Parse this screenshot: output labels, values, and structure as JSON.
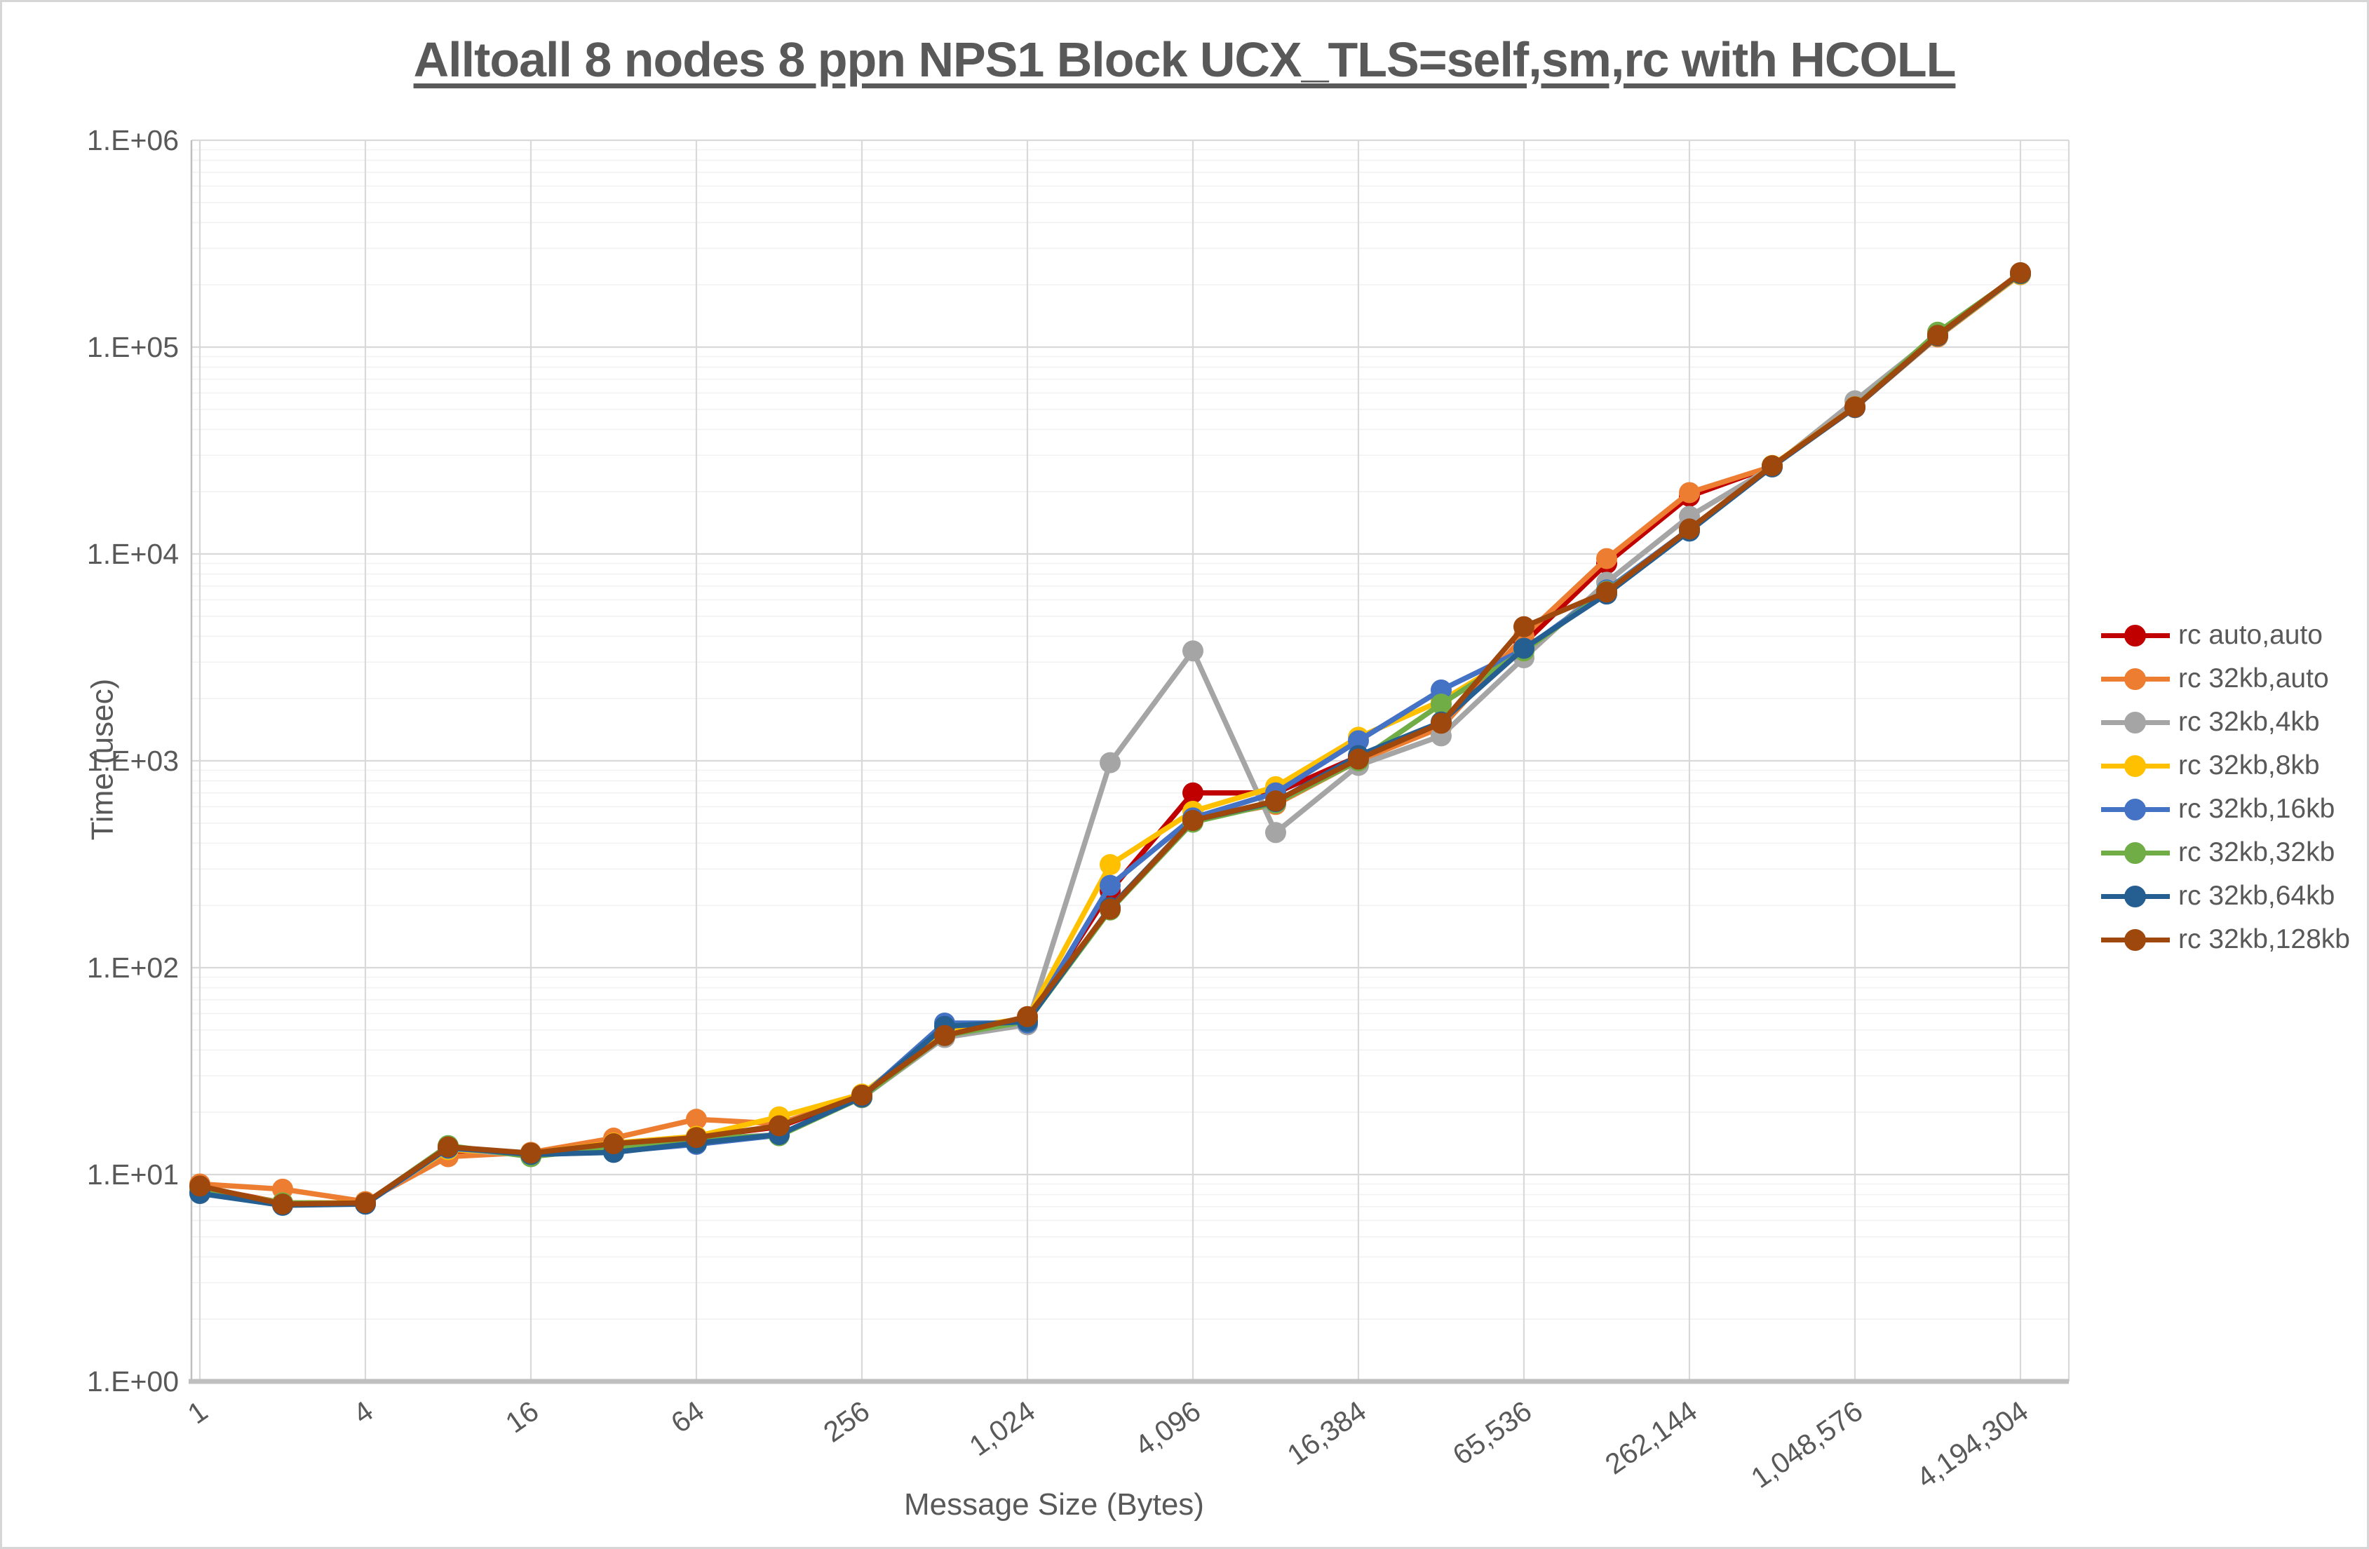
{
  "chart_data": {
    "type": "line",
    "title": "Alltoall 8 nodes 8 ppn NPS1 Block UCX_TLS=self,sm,rc with HCOLL",
    "xlabel": "Message Size (Bytes)",
    "ylabel": "Time (usec)",
    "x_scale": "categorical powers of 2 (1 .. 4194304)",
    "y_scale": "log10",
    "ylim": [
      1,
      1000000
    ],
    "grid": "horizontal major+minor log gridlines, vertical gridlines at labeled categories",
    "legend_position": "right",
    "y_tick_labels": [
      "1.E+00",
      "1.E+01",
      "1.E+02",
      "1.E+03",
      "1.E+04",
      "1.E+05",
      "1.E+06"
    ],
    "x_categories": [
      1,
      2,
      4,
      8,
      16,
      32,
      64,
      128,
      256,
      512,
      1024,
      2048,
      4096,
      8192,
      16384,
      32768,
      65536,
      131072,
      262144,
      524288,
      1048576,
      2097152,
      4194304
    ],
    "x_tick_labels": [
      "1",
      "4",
      "16",
      "64",
      "256",
      "1,024",
      "4,096",
      "16,384",
      "65,536",
      "262,144",
      "1,048,576",
      "4,194,304"
    ],
    "series": [
      {
        "name": "rc auto,auto",
        "color": "#C00000",
        "values": [
          8.7,
          7.3,
          7.3,
          13.0,
          12.6,
          14.0,
          15.2,
          17.0,
          24.0,
          47,
          56,
          235,
          700,
          700,
          1050,
          1500,
          3700,
          9000,
          19000,
          26500,
          51000,
          113000,
          225000
        ]
      },
      {
        "name": "rc 32kb,auto",
        "color": "#ED7D31",
        "values": [
          9.0,
          8.5,
          7.4,
          12.2,
          12.8,
          15.0,
          18.5,
          17.6,
          24.0,
          46,
          56,
          195,
          520,
          615,
          1000,
          1450,
          4000,
          9500,
          19800,
          26500,
          51000,
          112000,
          224000
        ]
      },
      {
        "name": "rc 32kb,4kb",
        "color": "#A5A5A5",
        "values": [
          8.3,
          7.2,
          7.2,
          13.3,
          12.4,
          13.0,
          14.8,
          15.6,
          23.5,
          46,
          53,
          980,
          3400,
          450,
          950,
          1320,
          3150,
          7300,
          15200,
          26300,
          55000,
          115000,
          226000
        ]
      },
      {
        "name": "rc 32kb,8kb",
        "color": "#FFC000",
        "values": [
          8.6,
          7.3,
          7.3,
          13.2,
          12.7,
          14.2,
          15.3,
          19.0,
          24.5,
          50,
          57,
          315,
          570,
          750,
          1300,
          1950,
          3400,
          6600,
          13000,
          26800,
          51500,
          113000,
          225000
        ]
      },
      {
        "name": "rc 32kb,16kb",
        "color": "#4472C4",
        "values": [
          8.2,
          7.2,
          7.2,
          13.4,
          12.6,
          12.9,
          14.0,
          15.5,
          23.8,
          54,
          54,
          250,
          530,
          700,
          1250,
          2200,
          3450,
          6700,
          13200,
          26500,
          51200,
          113500,
          228000
        ]
      },
      {
        "name": "rc 32kb,32kb",
        "color": "#70AD47",
        "values": [
          8.5,
          7.3,
          7.25,
          13.8,
          12.2,
          13.5,
          15.0,
          15.4,
          23.6,
          47,
          55,
          190,
          505,
          625,
          1000,
          1880,
          3400,
          6600,
          13100,
          26600,
          51300,
          118000,
          226000
        ]
      },
      {
        "name": "rc 32kb,64kb",
        "color": "#255E91",
        "values": [
          8.1,
          7.1,
          7.2,
          13.5,
          12.5,
          12.8,
          14.2,
          15.6,
          23.7,
          52,
          55,
          195,
          515,
          635,
          1060,
          1540,
          3500,
          6400,
          12900,
          26400,
          51100,
          113200,
          227000
        ]
      },
      {
        "name": "rc 32kb,128kb",
        "color": "#9E480E",
        "values": [
          8.8,
          7.2,
          7.3,
          13.6,
          12.7,
          14.1,
          15.1,
          17.2,
          24.2,
          47,
          58,
          192,
          515,
          640,
          1020,
          1520,
          4450,
          6550,
          13200,
          26700,
          51400,
          114000,
          229000
        ]
      }
    ]
  },
  "styles": {
    "text_color": "#595959",
    "grid_major": "#D9D9D9",
    "grid_minor": "#F2F2F2",
    "axis_line": "#BFBFBF",
    "background": "#FFFFFF"
  }
}
